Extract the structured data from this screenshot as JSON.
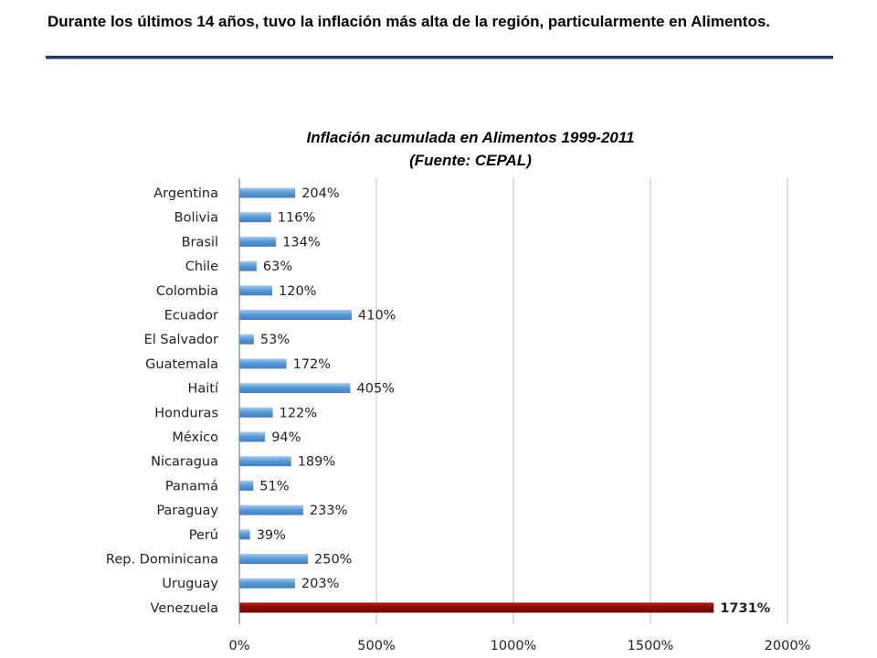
{
  "heading": "Durante los últimos 14 años, tuvo la inflación más alta de la región, particularmente en Alimentos.",
  "chart_title_line1": "Inflación acumulada en Alimentos 1999-2011",
  "chart_title_line2": "(Fuente: CEPAL)",
  "colors": {
    "bar": "#5b9bd5",
    "highlight": "#8b0a05",
    "rule": "#1f3864",
    "grid": "#bfbfbf"
  },
  "chart_data": {
    "type": "bar",
    "orientation": "horizontal",
    "title": "Inflación acumulada en Alimentos 1999-2011 (Fuente: CEPAL)",
    "categories": [
      "Argentina",
      "Bolivia",
      "Brasil",
      "Chile",
      "Colombia",
      "Ecuador",
      "El Salvador",
      "Guatemala",
      "Haití",
      "Honduras",
      "México",
      "Nicaragua",
      "Panamá",
      "Paraguay",
      "Perú",
      "Rep. Dominicana",
      "Uruguay",
      "Venezuela"
    ],
    "values": [
      204,
      116,
      134,
      63,
      120,
      410,
      53,
      172,
      405,
      122,
      94,
      189,
      51,
      233,
      39,
      250,
      203,
      1731
    ],
    "value_labels": [
      "204%",
      "116%",
      "134%",
      "63%",
      "120%",
      "410%",
      "53%",
      "172%",
      "405%",
      "122%",
      "94%",
      "189%",
      "51%",
      "233%",
      "39%",
      "250%",
      "203%",
      "1731%"
    ],
    "highlight": "Venezuela",
    "xlim": [
      0,
      2000
    ],
    "xticks": [
      0,
      500,
      1000,
      1500,
      2000
    ],
    "xtick_labels": [
      "0%",
      "500%",
      "1000%",
      "1500%",
      "2000%"
    ],
    "xlabel": "",
    "ylabel": "",
    "grid": true,
    "legend": false
  }
}
